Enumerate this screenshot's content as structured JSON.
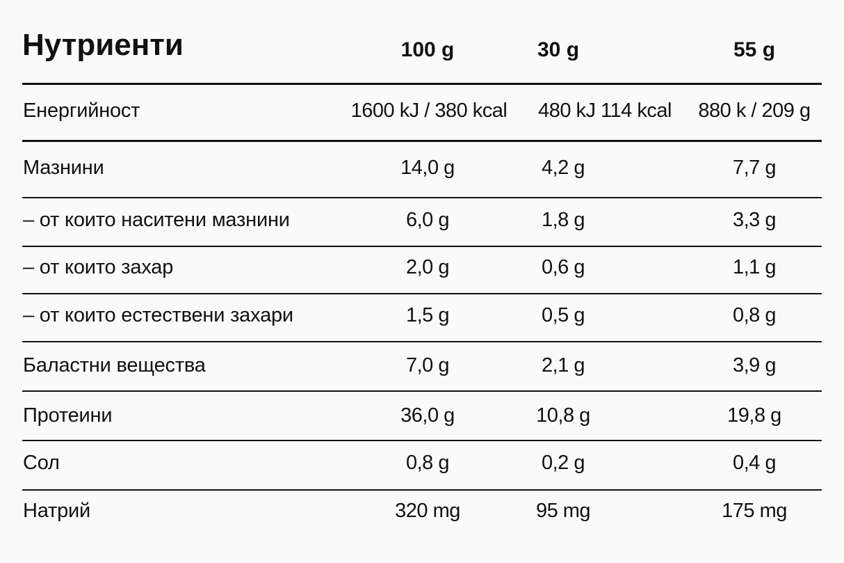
{
  "title": "Нутриенти",
  "columns": [
    "100 g",
    "30 g",
    "55 g"
  ],
  "rows": [
    {
      "label": "Енергийност",
      "values": [
        "1600 kJ / 380 kcal",
        "480 kJ 114 kcal",
        "880 k / 209 g"
      ]
    },
    {
      "label": "Мазнини",
      "values": [
        "14,0 g",
        "4,2 g",
        "7,7 g"
      ]
    },
    {
      "label": "– от които наситени мазнини",
      "values": [
        "6,0 g",
        "1,8 g",
        "3,3 g"
      ]
    },
    {
      "label": "– от които захар",
      "values": [
        "2,0 g",
        "0,6 g",
        "1,1 g"
      ]
    },
    {
      "label": "– от които естествени захари",
      "values": [
        "1,5 g",
        "0,5 g",
        "0,8 g"
      ]
    },
    {
      "label": "Баластни вещества",
      "values": [
        "7,0 g",
        "2,1 g",
        "3,9 g"
      ]
    },
    {
      "label": "Протеини",
      "values": [
        "36,0 g",
        "10,8 g",
        "19,8 g"
      ]
    },
    {
      "label": "Сол",
      "values": [
        "0,8 g",
        "0,2 g",
        "0,4 g"
      ]
    },
    {
      "label": "Натрий",
      "values": [
        "320 mg",
        "95 mg",
        "175 mg"
      ]
    }
  ]
}
